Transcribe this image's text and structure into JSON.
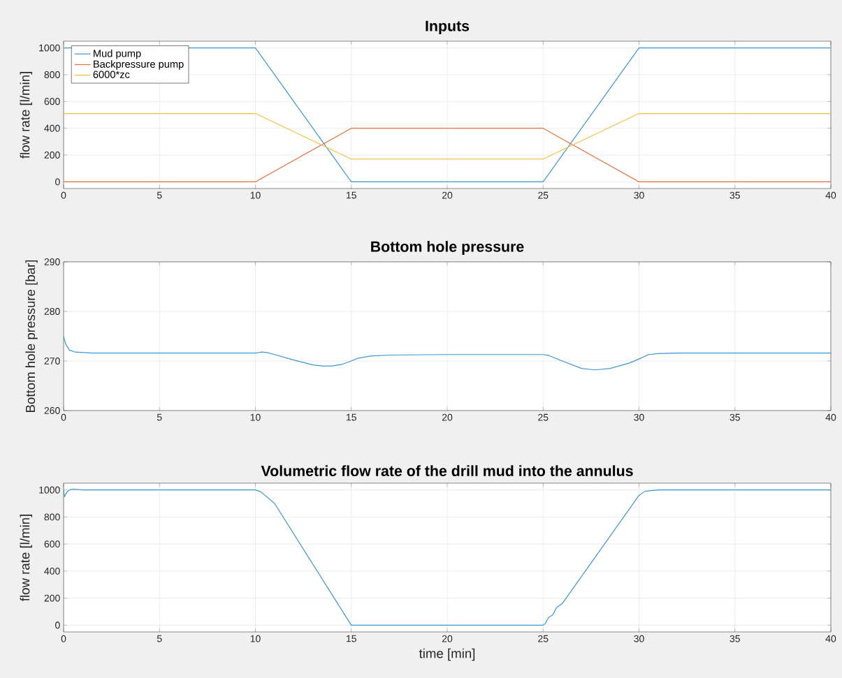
{
  "chart_data": [
    {
      "type": "line",
      "title": "Inputs",
      "ylabel": "flow rate [l/min]",
      "xlim": [
        0,
        40
      ],
      "xticks": [
        0,
        5,
        10,
        15,
        20,
        25,
        30,
        35,
        40
      ],
      "ylim": [
        -50,
        1050
      ],
      "yticks": [
        0,
        200,
        400,
        600,
        800,
        1000
      ],
      "grid": true,
      "legend": "top left",
      "series": [
        {
          "name": "Mud pump",
          "color": "#3c96d2",
          "x": [
            0,
            10,
            15,
            25,
            30,
            40
          ],
          "values": [
            1000,
            1000,
            0,
            0,
            1000,
            1000
          ]
        },
        {
          "name": "Backpressure pump",
          "color": "#e0703c",
          "x": [
            0,
            10,
            15,
            25,
            30,
            40
          ],
          "values": [
            0,
            0,
            400,
            400,
            0,
            0
          ]
        },
        {
          "name": "6000*zc",
          "color": "#f0c040",
          "x": [
            0,
            10,
            15,
            25,
            30,
            40
          ],
          "values": [
            510,
            510,
            170,
            170,
            510,
            510
          ]
        }
      ]
    },
    {
      "type": "line",
      "title": "Bottom hole pressure",
      "ylabel": "Bottom hole pressure [bar]",
      "xlim": [
        0,
        40
      ],
      "xticks": [
        0,
        5,
        10,
        15,
        20,
        25,
        30,
        35,
        40
      ],
      "ylim": [
        260,
        290
      ],
      "yticks": [
        260,
        270,
        280,
        290
      ],
      "grid": true,
      "series": [
        {
          "color": "#3c96d2",
          "x": [
            0,
            0.1,
            0.3,
            0.6,
            1.5,
            10,
            10.3,
            10.6,
            11,
            12,
            13,
            13.5,
            14,
            14.5,
            15,
            15.3,
            16,
            17,
            20,
            25,
            25.3,
            26,
            27,
            27.7,
            28.5,
            29.5,
            30,
            30.5,
            31,
            32,
            40
          ],
          "values": [
            275,
            273.5,
            272.2,
            271.8,
            271.6,
            271.6,
            271.8,
            271.7,
            271.3,
            270.2,
            269.2,
            269.0,
            269.0,
            269.3,
            270.0,
            270.5,
            271.0,
            271.2,
            271.3,
            271.3,
            271.1,
            270.0,
            268.5,
            268.2,
            268.5,
            269.6,
            270.4,
            271.3,
            271.5,
            271.6,
            271.6
          ]
        }
      ]
    },
    {
      "type": "line",
      "title": "Volumetric flow rate of the drill mud into the annulus",
      "xlabel": "time [min]",
      "ylabel": "flow rate [l/min]",
      "xlim": [
        0,
        40
      ],
      "xticks": [
        0,
        5,
        10,
        15,
        20,
        25,
        30,
        35,
        40
      ],
      "ylim": [
        -50,
        1050
      ],
      "yticks": [
        0,
        200,
        400,
        600,
        800,
        1000
      ],
      "grid": true,
      "series": [
        {
          "color": "#3c96d2",
          "x": [
            0,
            0.05,
            0.15,
            0.3,
            0.5,
            1,
            10,
            10.3,
            11,
            15,
            25,
            25.1,
            25.3,
            25.5,
            25.7,
            26,
            30,
            30.3,
            31,
            40
          ],
          "values": [
            1000,
            950,
            980,
            1000,
            1005,
            1000,
            1000,
            985,
            900,
            0,
            0,
            10,
            60,
            75,
            130,
            160,
            960,
            990,
            1000,
            1000
          ]
        }
      ]
    }
  ]
}
